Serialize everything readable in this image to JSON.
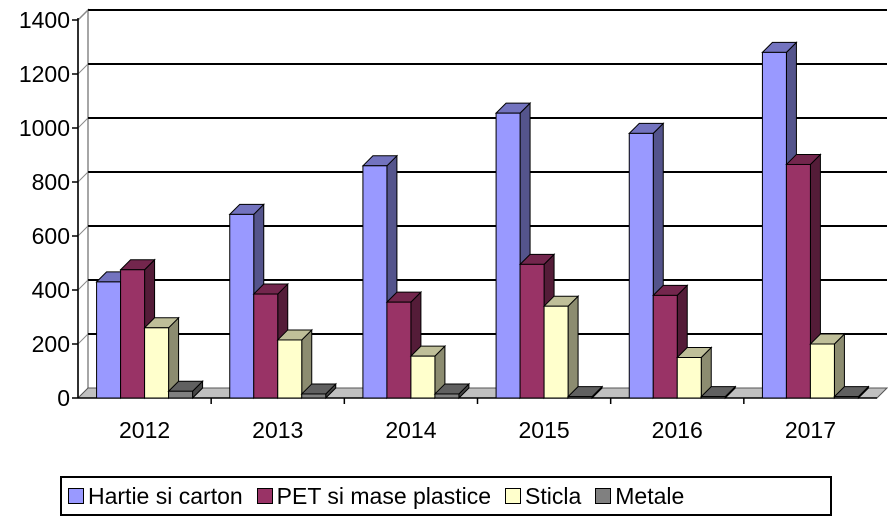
{
  "chart_data": {
    "type": "bar",
    "categories": [
      "2012",
      "2013",
      "2014",
      "2015",
      "2016",
      "2017"
    ],
    "series": [
      {
        "name": "Hartie si carton",
        "color": "#9999ff",
        "values": [
          430,
          680,
          860,
          1055,
          980,
          1280
        ]
      },
      {
        "name": "PET si mase plastice",
        "color": "#993366",
        "values": [
          475,
          385,
          355,
          495,
          380,
          865
        ]
      },
      {
        "name": "Sticla",
        "color": "#ffffcc",
        "values": [
          260,
          215,
          155,
          340,
          150,
          200
        ]
      },
      {
        "name": "Metale",
        "color": "#808080",
        "values": [
          25,
          15,
          15,
          5,
          5,
          5
        ]
      }
    ],
    "yticks": [
      0,
      200,
      400,
      600,
      800,
      1000,
      1200,
      1400
    ],
    "ylim": [
      0,
      1400
    ],
    "grid": true,
    "legend_position": "bottom",
    "style": "3d-column"
  }
}
